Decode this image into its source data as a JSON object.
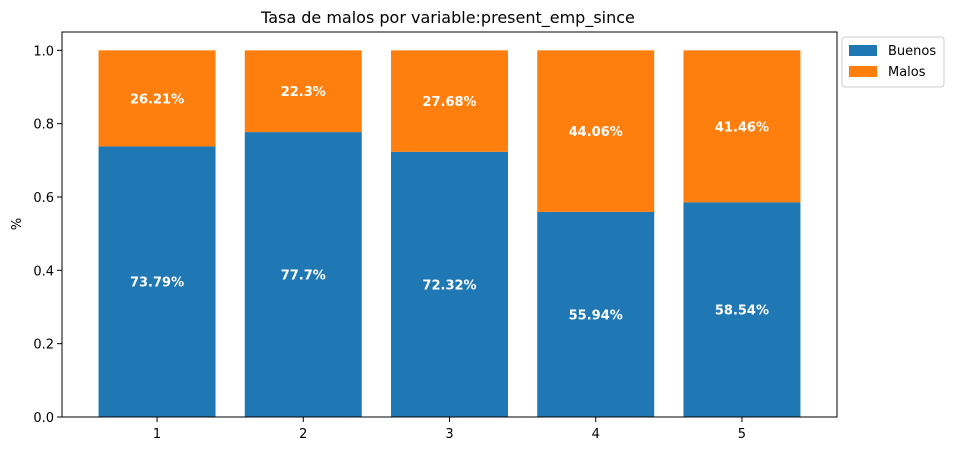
{
  "chart_data": {
    "type": "bar",
    "stacked": true,
    "title": "Tasa de malos por variable:present_emp_since",
    "xlabel": "",
    "ylabel": "%",
    "categories": [
      "1",
      "2",
      "3",
      "4",
      "5"
    ],
    "ylim": [
      0,
      1.05
    ],
    "yticks": [
      "0.0",
      "0.2",
      "0.4",
      "0.6",
      "0.8",
      "1.0"
    ],
    "legend_position": "outside top-right",
    "grid": false,
    "series": [
      {
        "name": "Buenos",
        "color": "#1f77b4",
        "values": [
          0.7379,
          0.777,
          0.7232,
          0.5594,
          0.5854
        ],
        "labels": [
          "73.79%",
          "77.7%",
          "72.32%",
          "55.94%",
          "58.54%"
        ]
      },
      {
        "name": "Malos",
        "color": "#ff7f0e",
        "values": [
          0.2621,
          0.223,
          0.2768,
          0.4406,
          0.4146
        ],
        "labels": [
          "26.21%",
          "22.3%",
          "27.68%",
          "44.06%",
          "41.46%"
        ]
      }
    ]
  }
}
